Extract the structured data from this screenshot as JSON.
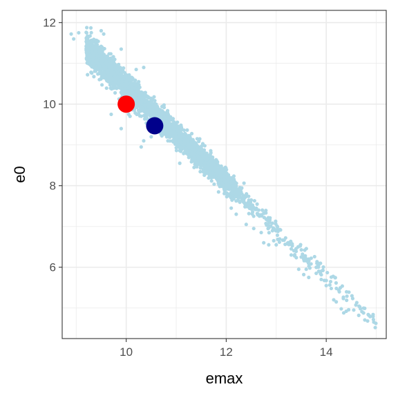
{
  "chart_data": {
    "type": "scatter",
    "xlabel": "emax",
    "ylabel": "e0",
    "xlim": [
      8.72,
      15.2
    ],
    "ylim": [
      4.25,
      12.3
    ],
    "x_ticks": [
      10,
      12,
      14
    ],
    "x_tick_labels": [
      "10",
      "12",
      "14"
    ],
    "y_ticks": [
      6,
      8,
      10,
      12
    ],
    "y_tick_labels": [
      "6",
      "8",
      "10",
      "12"
    ],
    "x_minor": [
      9,
      11,
      13,
      15
    ],
    "y_minor": [
      5,
      7,
      9,
      11
    ],
    "grid": true,
    "theme": "bw",
    "series": [
      {
        "role": "samples",
        "color": "#add8e6",
        "band": {
          "x": [
            9.0,
            15.0
          ],
          "center_y": [
            11.6,
            4.6
          ],
          "core_x": [
            9.2,
            12.2
          ],
          "core_spread": 0.18,
          "tail_spread": 0.09,
          "count": 3000
        },
        "points": [
          {
            "x": 8.9,
            "y": 11.72
          },
          {
            "x": 8.95,
            "y": 11.6
          },
          {
            "x": 9.05,
            "y": 11.75
          },
          {
            "x": 9.5,
            "y": 11.8
          },
          {
            "x": 9.55,
            "y": 11.72
          },
          {
            "x": 9.9,
            "y": 11.35
          },
          {
            "x": 10.2,
            "y": 10.85
          },
          {
            "x": 10.35,
            "y": 10.9
          },
          {
            "x": 10.25,
            "y": 10.55
          },
          {
            "x": 9.7,
            "y": 9.75
          },
          {
            "x": 9.9,
            "y": 9.4
          },
          {
            "x": 10.3,
            "y": 8.95
          },
          {
            "x": 10.35,
            "y": 9.1
          },
          {
            "x": 10.5,
            "y": 9.2
          },
          {
            "x": 10.05,
            "y": 9.75
          },
          {
            "x": 11.0,
            "y": 9.15
          },
          {
            "x": 11.45,
            "y": 8.7
          },
          {
            "x": 11.5,
            "y": 8.55
          },
          {
            "x": 12.0,
            "y": 7.95
          },
          {
            "x": 12.2,
            "y": 7.3
          },
          {
            "x": 12.1,
            "y": 7.45
          },
          {
            "x": 12.4,
            "y": 7.05
          },
          {
            "x": 12.55,
            "y": 6.95
          },
          {
            "x": 12.7,
            "y": 6.85
          },
          {
            "x": 12.75,
            "y": 6.6
          },
          {
            "x": 12.85,
            "y": 6.55
          },
          {
            "x": 12.95,
            "y": 6.65
          },
          {
            "x": 13.0,
            "y": 6.55
          },
          {
            "x": 13.3,
            "y": 6.45
          },
          {
            "x": 13.5,
            "y": 6.25
          },
          {
            "x": 13.55,
            "y": 6.2
          },
          {
            "x": 13.3,
            "y": 6.3
          },
          {
            "x": 13.45,
            "y": 5.95
          },
          {
            "x": 13.6,
            "y": 5.95
          },
          {
            "x": 13.55,
            "y": 5.82
          },
          {
            "x": 13.8,
            "y": 5.85
          },
          {
            "x": 13.85,
            "y": 5.9
          },
          {
            "x": 13.9,
            "y": 5.7
          },
          {
            "x": 14.0,
            "y": 5.55
          },
          {
            "x": 13.65,
            "y": 5.75
          },
          {
            "x": 14.1,
            "y": 5.48
          },
          {
            "x": 14.15,
            "y": 5.2
          },
          {
            "x": 14.2,
            "y": 5.15
          },
          {
            "x": 14.3,
            "y": 4.98
          },
          {
            "x": 14.35,
            "y": 4.88
          },
          {
            "x": 14.4,
            "y": 4.92
          },
          {
            "x": 14.55,
            "y": 4.95
          },
          {
            "x": 14.65,
            "y": 4.82
          },
          {
            "x": 14.98,
            "y": 4.52
          }
        ]
      },
      {
        "role": "highlight",
        "color": "#ff0000",
        "points": [
          {
            "x": 10.0,
            "y": 10.0
          }
        ]
      },
      {
        "role": "highlight",
        "color": "#00008b",
        "points": [
          {
            "x": 10.57,
            "y": 9.47
          }
        ]
      }
    ]
  }
}
